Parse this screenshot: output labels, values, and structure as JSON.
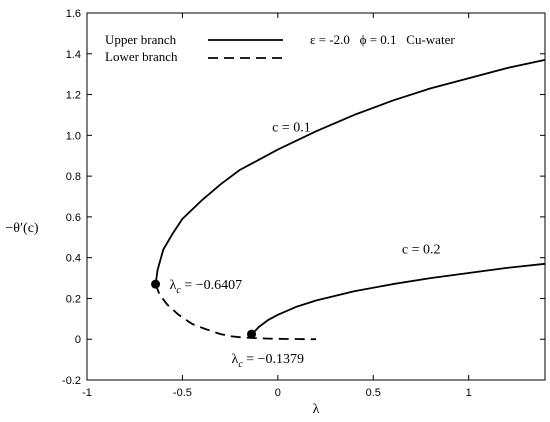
{
  "chart_data": {
    "type": "line",
    "xlabel": "λ",
    "ylabel": "−θ′(c)",
    "xlim": [
      -1,
      1.4
    ],
    "ylim": [
      -0.2,
      1.6
    ],
    "xticks": [
      -1,
      -0.5,
      0,
      0.5,
      1
    ],
    "xtick_labels": [
      "-1",
      "-0.5",
      "0",
      "0.5",
      "1"
    ],
    "yticks": [
      -0.2,
      0,
      0.2,
      0.4,
      0.6,
      0.8,
      1.0,
      1.2,
      1.4,
      1.6
    ],
    "ytick_labels": [
      "-0.2",
      "0",
      "0.2",
      "0.4",
      "0.6",
      "0.8",
      "1.0",
      "1.2",
      "1.4",
      "1.6"
    ],
    "parameters_text": "ε = -2.0   ϕ = 0.1   Cu-water",
    "legend": {
      "placement": "top-left",
      "entries": [
        {
          "label": "Upper branch",
          "style": "solid"
        },
        {
          "label": "Lower branch",
          "style": "dashed"
        }
      ]
    },
    "series": [
      {
        "style": "solid",
        "x": [
          -0.6407,
          -0.63,
          -0.6,
          -0.55,
          -0.5,
          -0.4,
          -0.3,
          -0.2,
          -0.1,
          0.0,
          0.2,
          0.4,
          0.6,
          0.8,
          1.0,
          1.2,
          1.4
        ],
        "y": [
          0.27,
          0.34,
          0.44,
          0.52,
          0.59,
          0.68,
          0.76,
          0.83,
          0.88,
          0.93,
          1.02,
          1.1,
          1.17,
          1.23,
          1.28,
          1.33,
          1.37
        ]
      },
      {
        "style": "dashed",
        "x": [
          -0.6407,
          -0.62,
          -0.58,
          -0.52,
          -0.45,
          -0.38,
          -0.3,
          -0.25,
          -0.2,
          -0.15,
          -0.1,
          -0.05,
          0.0,
          0.05,
          0.1,
          0.15,
          0.2
        ],
        "y": [
          0.27,
          0.22,
          0.17,
          0.12,
          0.075,
          0.05,
          0.025,
          0.015,
          0.01,
          0.007,
          0.005,
          0.003,
          0.002,
          0.001,
          0.001,
          0.0,
          0.0
        ]
      },
      {
        "style": "solid",
        "x": [
          -0.1379,
          -0.12,
          -0.1,
          -0.05,
          0.0,
          0.1,
          0.2,
          0.4,
          0.6,
          0.8,
          1.0,
          1.2,
          1.4
        ],
        "y": [
          0.025,
          0.04,
          0.06,
          0.095,
          0.12,
          0.16,
          0.19,
          0.235,
          0.27,
          0.3,
          0.325,
          0.35,
          0.37
        ]
      }
    ],
    "critical_points": [
      {
        "x": -0.6407,
        "y": 0.27,
        "label_prefix": "λ",
        "label_sub": "c",
        "label_value": " = −0.6407"
      },
      {
        "x": -0.1379,
        "y": 0.025,
        "label_prefix": "λ",
        "label_sub": "c",
        "label_value": " = −0.1379"
      }
    ],
    "annotations": [
      {
        "text": "c = 0.1",
        "x": -0.03,
        "y": 1.02
      },
      {
        "text": "c = 0.2",
        "x": 0.65,
        "y": 0.42
      }
    ]
  }
}
